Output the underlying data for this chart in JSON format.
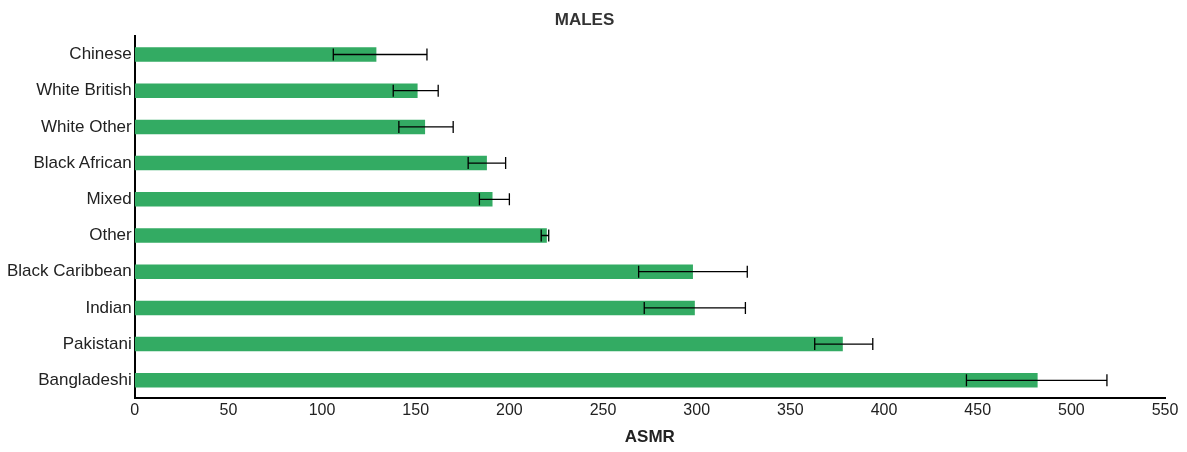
{
  "chart_data": {
    "type": "bar",
    "orientation": "horizontal",
    "title": "MALES",
    "xlabel": "ASMR",
    "categories": [
      "Chinese",
      "White British",
      "White Other",
      "Black African",
      "Mixed",
      "Other",
      "Black Caribbean",
      "Indian",
      "Pakistani",
      "Bangladeshi"
    ],
    "values": [
      129,
      151,
      155,
      188,
      191,
      220,
      298,
      299,
      378,
      482
    ],
    "errors": [
      [
        106,
        156
      ],
      [
        138,
        162
      ],
      [
        141,
        170
      ],
      [
        178,
        198
      ],
      [
        184,
        200
      ],
      [
        217,
        221
      ],
      [
        269,
        327
      ],
      [
        272,
        326
      ],
      [
        363,
        394
      ],
      [
        444,
        519
      ]
    ],
    "color": "#33ab63",
    "xlim": [
      0,
      550
    ],
    "xticks": [
      0,
      50,
      100,
      150,
      200,
      250,
      300,
      350,
      400,
      450,
      500,
      550
    ],
    "grid": false,
    "legend": false
  }
}
